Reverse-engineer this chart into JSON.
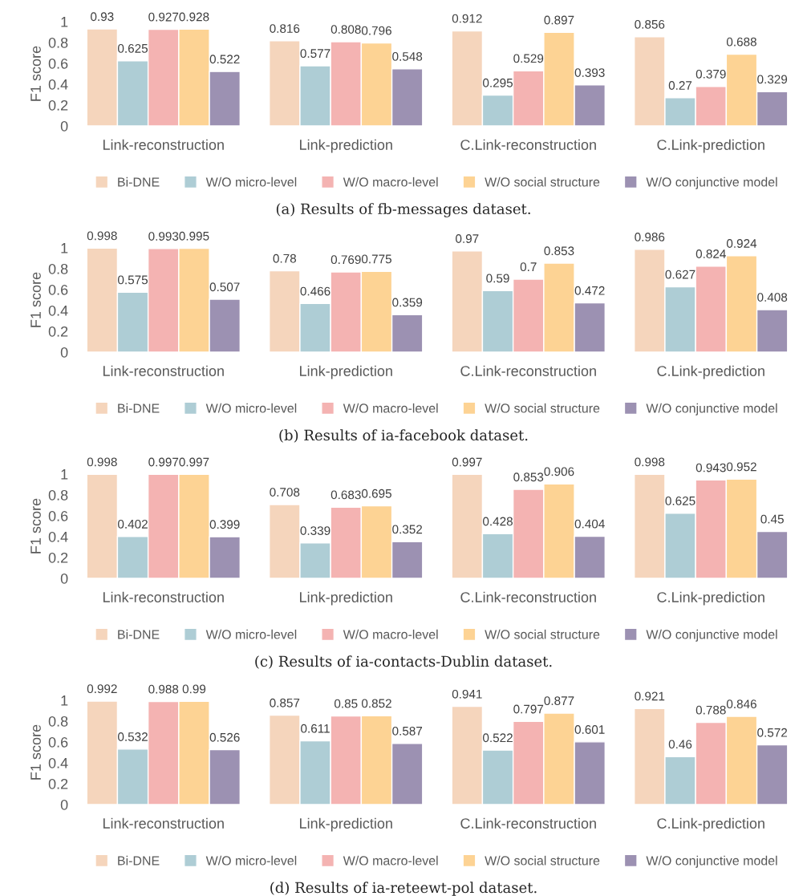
{
  "chart_data": [
    {
      "type": "bar",
      "ylabel": "F1 score",
      "categories": [
        "Link-reconstruction",
        "Link-prediction",
        "C.Link-reconstruction",
        "C.Link-prediction"
      ],
      "ylim": [
        0,
        1
      ],
      "yticks": [
        0,
        0.2,
        0.4,
        0.6,
        0.8,
        1
      ],
      "grid": false,
      "legend": "bottom",
      "data_labels": true,
      "annotations": [
        "(a) Results of fb-messages dataset."
      ],
      "series": [
        {
          "name": "Bi-DNE",
          "color": "#f5d5bc",
          "values": [
            0.93,
            0.816,
            0.912,
            0.856
          ]
        },
        {
          "name": "W/O micro-level",
          "color": "#aecdd5",
          "values": [
            0.625,
            0.577,
            0.295,
            0.27
          ]
        },
        {
          "name": "W/O macro-level",
          "color": "#f4b3b2",
          "values": [
            0.927,
            0.808,
            0.529,
            0.379
          ]
        },
        {
          "name": "W/O social structure",
          "color": "#fdd394",
          "values": [
            0.928,
            0.796,
            0.897,
            0.688
          ]
        },
        {
          "name": "W/O conjunctive model",
          "color": "#9c91b2",
          "values": [
            0.522,
            0.548,
            0.393,
            0.329
          ]
        }
      ]
    },
    {
      "type": "bar",
      "ylabel": "F1 score",
      "categories": [
        "Link-reconstruction",
        "Link-prediction",
        "C.Link-reconstruction",
        "C.Link-prediction"
      ],
      "ylim": [
        0,
        1
      ],
      "yticks": [
        0,
        0.2,
        0.4,
        0.6,
        0.8,
        1
      ],
      "grid": false,
      "legend": "bottom",
      "data_labels": true,
      "annotations": [
        "(b) Results of ia-facebook dataset."
      ],
      "series": [
        {
          "name": "Bi-DNE",
          "color": "#f5d5bc",
          "values": [
            0.998,
            0.78,
            0.97,
            0.986
          ]
        },
        {
          "name": "W/O micro-level",
          "color": "#aecdd5",
          "values": [
            0.575,
            0.466,
            0.59,
            0.627
          ]
        },
        {
          "name": "W/O macro-level",
          "color": "#f4b3b2",
          "values": [
            0.993,
            0.769,
            0.7,
            0.824
          ]
        },
        {
          "name": "W/O social structure",
          "color": "#fdd394",
          "values": [
            0.995,
            0.775,
            0.853,
            0.924
          ]
        },
        {
          "name": "W/O conjunctive model",
          "color": "#9c91b2",
          "values": [
            0.507,
            0.359,
            0.472,
            0.408
          ]
        }
      ]
    },
    {
      "type": "bar",
      "ylabel": "F1 score",
      "categories": [
        "Link-reconstruction",
        "Link-prediction",
        "C.Link-reconstruction",
        "C.Link-prediction"
      ],
      "ylim": [
        0,
        1
      ],
      "yticks": [
        0,
        0.2,
        0.4,
        0.6,
        0.8,
        1
      ],
      "grid": false,
      "legend": "bottom",
      "data_labels": true,
      "annotations": [
        "(c) Results of ia-contacts-Dublin dataset."
      ],
      "series": [
        {
          "name": "Bi-DNE",
          "color": "#f5d5bc",
          "values": [
            0.998,
            0.708,
            0.997,
            0.998
          ]
        },
        {
          "name": "W/O micro-level",
          "color": "#aecdd5",
          "values": [
            0.402,
            0.339,
            0.428,
            0.625
          ]
        },
        {
          "name": "W/O macro-level",
          "color": "#f4b3b2",
          "values": [
            0.997,
            0.683,
            0.853,
            0.943
          ]
        },
        {
          "name": "W/O social structure",
          "color": "#fdd394",
          "values": [
            0.997,
            0.695,
            0.906,
            0.952
          ]
        },
        {
          "name": "W/O conjunctive model",
          "color": "#9c91b2",
          "values": [
            0.399,
            0.352,
            0.404,
            0.45
          ]
        }
      ]
    },
    {
      "type": "bar",
      "ylabel": "F1 score",
      "categories": [
        "Link-reconstruction",
        "Link-prediction",
        "C.Link-reconstruction",
        "C.Link-prediction"
      ],
      "ylim": [
        0,
        1
      ],
      "yticks": [
        0,
        0.2,
        0.4,
        0.6,
        0.8,
        1
      ],
      "grid": false,
      "legend": "bottom",
      "data_labels": true,
      "annotations": [
        "(d) Results of ia-reteewt-pol dataset."
      ],
      "series": [
        {
          "name": "Bi-DNE",
          "color": "#f5d5bc",
          "values": [
            0.992,
            0.857,
            0.941,
            0.921
          ]
        },
        {
          "name": "W/O micro-level",
          "color": "#aecdd5",
          "values": [
            0.532,
            0.611,
            0.522,
            0.46
          ]
        },
        {
          "name": "W/O macro-level",
          "color": "#f4b3b2",
          "values": [
            0.988,
            0.85,
            0.797,
            0.788
          ]
        },
        {
          "name": "W/O social structure",
          "color": "#fdd394",
          "values": [
            0.99,
            0.852,
            0.877,
            0.846
          ]
        },
        {
          "name": "W/O conjunctive model",
          "color": "#9c91b2",
          "values": [
            0.526,
            0.587,
            0.601,
            0.572
          ]
        }
      ]
    }
  ]
}
